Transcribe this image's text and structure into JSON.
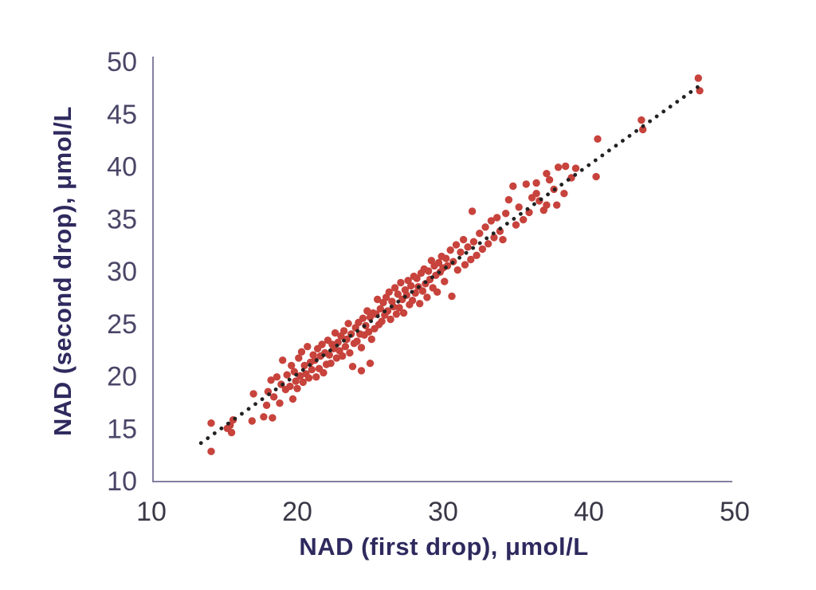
{
  "chart_data": {
    "type": "scatter",
    "title": "",
    "xlabel": "NAD (first drop), μmol/L",
    "ylabel": "NAD (second drop), μmol/L",
    "xlim": [
      10,
      50
    ],
    "ylim": [
      10,
      50
    ],
    "xticks": [
      10,
      20,
      30,
      40,
      50
    ],
    "yticks": [
      10,
      15,
      20,
      25,
      30,
      35,
      40,
      45,
      50
    ],
    "grid": false,
    "legend": "none",
    "point_color": "#c7433c",
    "axis_line_color": "#827fa0",
    "axis_title_color": "#2e2a5e",
    "trendline": {
      "style": "dotted",
      "color": "#222222",
      "x1": 13.4,
      "y1": 13.6,
      "x2": 47.5,
      "y2": 47.6
    },
    "points": [
      [
        14.1,
        15.5
      ],
      [
        14.1,
        12.8
      ],
      [
        15.2,
        15.0
      ],
      [
        15.4,
        15.3
      ],
      [
        15.5,
        14.6
      ],
      [
        15.6,
        15.8
      ],
      [
        16.9,
        15.7
      ],
      [
        17.0,
        18.3
      ],
      [
        17.7,
        16.1
      ],
      [
        17.9,
        17.2
      ],
      [
        18.0,
        18.5
      ],
      [
        18.3,
        16.0
      ],
      [
        18.2,
        19.6
      ],
      [
        18.4,
        18.0
      ],
      [
        18.6,
        19.9
      ],
      [
        18.8,
        17.4
      ],
      [
        18.9,
        19.2
      ],
      [
        19.0,
        21.5
      ],
      [
        19.2,
        18.7
      ],
      [
        19.3,
        20.1
      ],
      [
        19.5,
        19.0
      ],
      [
        19.6,
        21.0
      ],
      [
        19.7,
        17.8
      ],
      [
        19.8,
        20.4
      ],
      [
        19.9,
        19.5
      ],
      [
        20.0,
        18.8
      ],
      [
        20.1,
        21.7
      ],
      [
        20.2,
        20.0
      ],
      [
        20.3,
        22.3
      ],
      [
        20.4,
        19.4
      ],
      [
        20.5,
        21.0
      ],
      [
        20.6,
        20.2
      ],
      [
        20.7,
        22.8
      ],
      [
        20.8,
        19.8
      ],
      [
        20.9,
        21.3
      ],
      [
        21.0,
        20.6
      ],
      [
        21.1,
        22.0
      ],
      [
        21.2,
        21.5
      ],
      [
        21.3,
        19.9
      ],
      [
        21.4,
        22.6
      ],
      [
        21.5,
        20.7
      ],
      [
        21.6,
        21.9
      ],
      [
        21.7,
        23.0
      ],
      [
        21.8,
        20.3
      ],
      [
        21.9,
        22.2
      ],
      [
        22.0,
        21.1
      ],
      [
        22.1,
        23.4
      ],
      [
        22.2,
        22.0
      ],
      [
        22.3,
        21.2
      ],
      [
        22.4,
        23.0
      ],
      [
        22.5,
        22.6
      ],
      [
        22.6,
        24.1
      ],
      [
        22.7,
        21.7
      ],
      [
        22.8,
        23.2
      ],
      [
        22.9,
        22.4
      ],
      [
        23.0,
        23.8
      ],
      [
        23.1,
        21.9
      ],
      [
        23.2,
        24.3
      ],
      [
        23.3,
        22.8
      ],
      [
        23.4,
        23.5
      ],
      [
        23.5,
        25.0
      ],
      [
        23.6,
        22.2
      ],
      [
        23.7,
        24.0
      ],
      [
        23.8,
        20.9
      ],
      [
        23.9,
        23.1
      ],
      [
        24.0,
        24.6
      ],
      [
        24.4,
        20.5
      ],
      [
        25.0,
        21.2
      ],
      [
        24.1,
        23.3
      ],
      [
        24.2,
        25.1
      ],
      [
        24.3,
        24.0
      ],
      [
        24.4,
        22.7
      ],
      [
        24.5,
        25.5
      ],
      [
        24.6,
        23.9
      ],
      [
        24.7,
        24.8
      ],
      [
        24.8,
        26.2
      ],
      [
        24.9,
        24.2
      ],
      [
        25.0,
        25.6
      ],
      [
        25.1,
        23.5
      ],
      [
        25.2,
        26.0
      ],
      [
        25.3,
        24.5
      ],
      [
        25.4,
        25.9
      ],
      [
        25.5,
        27.3
      ],
      [
        25.6,
        24.9
      ],
      [
        25.7,
        26.4
      ],
      [
        25.8,
        25.2
      ],
      [
        25.9,
        27.0
      ],
      [
        26.0,
        25.8
      ],
      [
        26.1,
        27.5
      ],
      [
        26.2,
        26.2
      ],
      [
        26.3,
        28.0
      ],
      [
        26.4,
        25.4
      ],
      [
        26.5,
        27.1
      ],
      [
        26.6,
        26.6
      ],
      [
        26.7,
        28.4
      ],
      [
        26.8,
        25.9
      ],
      [
        26.9,
        27.8
      ],
      [
        27.0,
        26.5
      ],
      [
        27.1,
        28.9
      ],
      [
        27.2,
        27.3
      ],
      [
        27.3,
        26.0
      ],
      [
        27.4,
        28.2
      ],
      [
        27.5,
        27.7
      ],
      [
        27.6,
        29.1
      ],
      [
        27.7,
        26.8
      ],
      [
        27.8,
        28.6
      ],
      [
        27.9,
        27.2
      ],
      [
        28.0,
        29.5
      ],
      [
        28.1,
        27.9
      ],
      [
        28.2,
        29.3
      ],
      [
        28.3,
        28.5
      ],
      [
        28.4,
        26.9
      ],
      [
        28.5,
        29.8
      ],
      [
        28.6,
        28.1
      ],
      [
        28.7,
        30.2
      ],
      [
        28.8,
        28.8
      ],
      [
        28.9,
        27.5
      ],
      [
        29.0,
        30.0
      ],
      [
        29.1,
        29.2
      ],
      [
        29.2,
        31.0
      ],
      [
        29.3,
        28.4
      ],
      [
        29.4,
        30.5
      ],
      [
        29.5,
        29.6
      ],
      [
        29.6,
        28.0
      ],
      [
        29.7,
        30.8
      ],
      [
        29.8,
        29.9
      ],
      [
        29.9,
        31.4
      ],
      [
        30.0,
        30.3
      ],
      [
        30.1,
        29.0
      ],
      [
        30.2,
        31.2
      ],
      [
        30.3,
        30.5
      ],
      [
        30.5,
        32.0
      ],
      [
        30.6,
        27.6
      ],
      [
        30.7,
        30.9
      ],
      [
        30.9,
        32.5
      ],
      [
        31.0,
        30.1
      ],
      [
        31.2,
        31.8
      ],
      [
        31.4,
        33.0
      ],
      [
        31.5,
        30.6
      ],
      [
        31.7,
        32.3
      ],
      [
        31.9,
        31.1
      ],
      [
        32.0,
        35.7
      ],
      [
        32.1,
        32.8
      ],
      [
        32.3,
        31.5
      ],
      [
        32.5,
        33.6
      ],
      [
        32.7,
        32.1
      ],
      [
        32.9,
        34.2
      ],
      [
        33.1,
        32.6
      ],
      [
        33.3,
        34.8
      ],
      [
        33.5,
        33.2
      ],
      [
        33.7,
        35.1
      ],
      [
        33.9,
        33.8
      ],
      [
        34.1,
        33.0
      ],
      [
        34.3,
        35.5
      ],
      [
        34.5,
        36.8
      ],
      [
        34.8,
        38.1
      ],
      [
        35.0,
        34.4
      ],
      [
        35.2,
        36.1
      ],
      [
        35.5,
        34.9
      ],
      [
        35.7,
        38.3
      ],
      [
        35.9,
        35.6
      ],
      [
        36.1,
        37.0
      ],
      [
        36.4,
        37.4
      ],
      [
        36.4,
        38.4
      ],
      [
        36.6,
        36.7
      ],
      [
        36.9,
        35.8
      ],
      [
        37.1,
        39.3
      ],
      [
        37.1,
        36.3
      ],
      [
        37.3,
        38.7
      ],
      [
        37.6,
        37.8
      ],
      [
        37.8,
        36.3
      ],
      [
        37.9,
        39.9
      ],
      [
        38.3,
        37.4
      ],
      [
        38.4,
        40.0
      ],
      [
        38.8,
        38.9
      ],
      [
        39.1,
        39.8
      ],
      [
        40.5,
        39.0
      ],
      [
        40.6,
        42.6
      ],
      [
        43.6,
        44.4
      ],
      [
        43.7,
        43.5
      ],
      [
        47.5,
        48.4
      ],
      [
        47.6,
        47.2
      ]
    ]
  }
}
